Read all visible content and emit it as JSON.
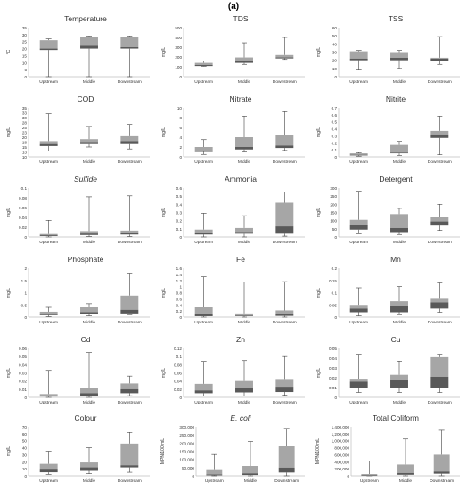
{
  "figure_label": "(a)",
  "colors": {
    "upper": "#a6a6a6",
    "lower": "#595959",
    "axis": "#bfbfbf",
    "whisker": "#404040"
  },
  "chart_data": [
    {
      "type": "box",
      "title": "Temperature",
      "title_italic": false,
      "ylabel": "°C",
      "ylim": [
        0,
        35
      ],
      "ticks": [
        "0",
        "5",
        "10",
        "15",
        "20",
        "25",
        "30",
        "35"
      ],
      "categories": [
        "Upstream",
        "Middle",
        "Downstream"
      ],
      "boxes": [
        {
          "min": 0,
          "q1": 19,
          "median": 20,
          "q3": 26,
          "max": 27
        },
        {
          "min": 0,
          "q1": 20,
          "median": 22,
          "q3": 28,
          "max": 29
        },
        {
          "min": 0,
          "q1": 20,
          "median": 21,
          "q3": 28,
          "max": 29
        }
      ]
    },
    {
      "type": "box",
      "title": "TDS",
      "title_italic": false,
      "ylabel": "mg/L",
      "ylim": [
        0,
        500
      ],
      "ticks": [
        "0",
        "100",
        "200",
        "300",
        "400",
        "500"
      ],
      "categories": [
        "Upstream",
        "Middle",
        "Downstream"
      ],
      "boxes": [
        {
          "min": 105,
          "q1": 108,
          "median": 118,
          "q3": 140,
          "max": 160
        },
        {
          "min": 125,
          "q1": 140,
          "median": 155,
          "q3": 195,
          "max": 345
        },
        {
          "min": 175,
          "q1": 185,
          "median": 195,
          "q3": 220,
          "max": 400
        }
      ]
    },
    {
      "type": "box",
      "title": "TSS",
      "title_italic": false,
      "ylabel": "mg/L",
      "ylim": [
        0,
        60
      ],
      "ticks": [
        "0",
        "10",
        "20",
        "30",
        "40",
        "50",
        "60"
      ],
      "categories": [
        "Upstream",
        "Middle",
        "Downstream"
      ],
      "boxes": [
        {
          "min": 8,
          "q1": 20,
          "median": 22,
          "q3": 31,
          "max": 32
        },
        {
          "min": 10,
          "q1": 20,
          "median": 23,
          "q3": 30,
          "max": 32
        },
        {
          "min": 15,
          "q1": 19,
          "median": 22,
          "q3": 23,
          "max": 49
        }
      ]
    },
    {
      "type": "box",
      "title": "COD",
      "title_italic": false,
      "ylabel": "mg/L",
      "ylim": [
        10,
        35
      ],
      "ticks": [
        "10",
        "13",
        "15",
        "18",
        "20",
        "23",
        "25",
        "28",
        "30",
        "33",
        "35"
      ],
      "categories": [
        "Upstream",
        "Middle",
        "Downstream"
      ],
      "boxes": [
        {
          "min": 13,
          "q1": 15.5,
          "median": 16.5,
          "q3": 18,
          "max": 32
        },
        {
          "min": 15,
          "q1": 16.5,
          "median": 17.5,
          "q3": 19,
          "max": 25.5
        },
        {
          "min": 14,
          "q1": 16.5,
          "median": 18,
          "q3": 20.5,
          "max": 26.5
        }
      ]
    },
    {
      "type": "box",
      "title": "Nitrate",
      "title_italic": false,
      "ylabel": "mg/L",
      "ylim": [
        0,
        10
      ],
      "ticks": [
        "0",
        "2",
        "4",
        "6",
        "8",
        "10"
      ],
      "categories": [
        "Upstream",
        "Middle",
        "Downstream"
      ],
      "boxes": [
        {
          "min": 0.5,
          "q1": 1.0,
          "median": 1.3,
          "q3": 2.0,
          "max": 3.5
        },
        {
          "min": 1.0,
          "q1": 1.5,
          "median": 2.0,
          "q3": 4.0,
          "max": 8.3
        },
        {
          "min": 1.3,
          "q1": 1.8,
          "median": 2.3,
          "q3": 4.5,
          "max": 9.2
        }
      ]
    },
    {
      "type": "box",
      "title": "Nitrite",
      "title_italic": false,
      "ylabel": "mg/L",
      "ylim": [
        0,
        0.7
      ],
      "ticks": [
        "0",
        "0.1",
        "0.2",
        "0.3",
        "0.4",
        "0.5",
        "0.6",
        "0.7"
      ],
      "categories": [
        "Upstream",
        "Middle",
        "Downstream"
      ],
      "boxes": [
        {
          "min": 0.01,
          "q1": 0.02,
          "median": 0.03,
          "q3": 0.05,
          "max": 0.06
        },
        {
          "min": 0.02,
          "q1": 0.05,
          "median": 0.06,
          "q3": 0.17,
          "max": 0.22
        },
        {
          "min": 0.03,
          "q1": 0.27,
          "median": 0.32,
          "q3": 0.37,
          "max": 0.58
        }
      ]
    },
    {
      "type": "box",
      "title": "Sulfide",
      "title_italic": true,
      "ylabel": "mg/L",
      "ylim": [
        0,
        0.1
      ],
      "ticks": [
        "0",
        "0.02",
        "0.04",
        "0.06",
        "0.08",
        "0.1"
      ],
      "categories": [
        "Upstream",
        "Middle",
        "Downstream"
      ],
      "boxes": [
        {
          "min": 0,
          "q1": 0.002,
          "median": 0.004,
          "q3": 0.006,
          "max": 0.034
        },
        {
          "min": 0.001,
          "q1": 0.004,
          "median": 0.007,
          "q3": 0.012,
          "max": 0.082
        },
        {
          "min": 0.001,
          "q1": 0.005,
          "median": 0.008,
          "q3": 0.013,
          "max": 0.084
        }
      ]
    },
    {
      "type": "box",
      "title": "Ammonia",
      "title_italic": false,
      "ylabel": "mg/L",
      "ylim": [
        0,
        0.6
      ],
      "ticks": [
        "0",
        "0.1",
        "0.2",
        "0.3",
        "0.4",
        "0.5",
        "0.6"
      ],
      "categories": [
        "Upstream",
        "Middle",
        "Downstream"
      ],
      "boxes": [
        {
          "min": 0,
          "q1": 0.03,
          "median": 0.05,
          "q3": 0.09,
          "max": 0.29
        },
        {
          "min": 0,
          "q1": 0.04,
          "median": 0.06,
          "q3": 0.11,
          "max": 0.26
        },
        {
          "min": 0.01,
          "q1": 0.04,
          "median": 0.13,
          "q3": 0.42,
          "max": 0.55
        }
      ]
    },
    {
      "type": "box",
      "title": "Detergent",
      "title_italic": false,
      "ylabel": "mg/L",
      "ylim": [
        0,
        300
      ],
      "ticks": [
        "0",
        "50",
        "100",
        "150",
        "200",
        "250",
        "300"
      ],
      "categories": [
        "Upstream",
        "Middle",
        "Downstream"
      ],
      "boxes": [
        {
          "min": 20,
          "q1": 45,
          "median": 75,
          "q3": 105,
          "max": 280
        },
        {
          "min": 15,
          "q1": 30,
          "median": 55,
          "q3": 140,
          "max": 175
        },
        {
          "min": 40,
          "q1": 70,
          "median": 95,
          "q3": 120,
          "max": 200
        }
      ]
    },
    {
      "type": "box",
      "title": "Phosphate",
      "title_italic": false,
      "ylabel": "mg/L",
      "ylim": [
        0,
        2
      ],
      "ticks": [
        "0",
        "0.5",
        "1",
        "1.5",
        "2"
      ],
      "categories": [
        "Upstream",
        "Middle",
        "Downstream"
      ],
      "boxes": [
        {
          "min": 0.02,
          "q1": 0.08,
          "median": 0.13,
          "q3": 0.22,
          "max": 0.4
        },
        {
          "min": 0.05,
          "q1": 0.12,
          "median": 0.2,
          "q3": 0.4,
          "max": 0.55
        },
        {
          "min": 0.1,
          "q1": 0.15,
          "median": 0.3,
          "q3": 0.88,
          "max": 1.8
        }
      ]
    },
    {
      "type": "box",
      "title": "Fe",
      "title_italic": false,
      "ylabel": "mg/L",
      "ylim": [
        0,
        1.6
      ],
      "ticks": [
        "0",
        "0.2",
        "0.4",
        "0.6",
        "0.8",
        "1",
        "1.2",
        "1.4",
        "1.6"
      ],
      "categories": [
        "Upstream",
        "Middle",
        "Downstream"
      ],
      "boxes": [
        {
          "min": 0,
          "q1": 0.03,
          "median": 0.09,
          "q3": 0.32,
          "max": 1.32
        },
        {
          "min": 0,
          "q1": 0.03,
          "median": 0.05,
          "q3": 0.12,
          "max": 1.15
        },
        {
          "min": 0,
          "q1": 0.04,
          "median": 0.1,
          "q3": 0.22,
          "max": 1.16
        }
      ]
    },
    {
      "type": "box",
      "title": "Mn",
      "title_italic": false,
      "ylabel": "mg/L",
      "ylim": [
        0,
        0.2
      ],
      "ticks": [
        "0",
        "0.05",
        "0.1",
        "0.15",
        "0.2"
      ],
      "categories": [
        "Upstream",
        "Middle",
        "Downstream"
      ],
      "boxes": [
        {
          "min": 0.005,
          "q1": 0.02,
          "median": 0.035,
          "q3": 0.05,
          "max": 0.12
        },
        {
          "min": 0.01,
          "q1": 0.02,
          "median": 0.045,
          "q3": 0.065,
          "max": 0.125
        },
        {
          "min": 0.02,
          "q1": 0.035,
          "median": 0.06,
          "q3": 0.075,
          "max": 0.14
        }
      ]
    },
    {
      "type": "box",
      "title": "Cd",
      "title_italic": false,
      "ylabel": "mg/L",
      "ylim": [
        0,
        0.06
      ],
      "ticks": [
        "0",
        "0.01",
        "0.02",
        "0.03",
        "0.04",
        "0.05",
        "0.06"
      ],
      "categories": [
        "Upstream",
        "Middle",
        "Downstream"
      ],
      "boxes": [
        {
          "min": 0,
          "q1": 0.001,
          "median": 0.002,
          "q3": 0.004,
          "max": 0.033
        },
        {
          "min": 0,
          "q1": 0.002,
          "median": 0.005,
          "q3": 0.012,
          "max": 0.055
        },
        {
          "min": 0.002,
          "q1": 0.005,
          "median": 0.01,
          "q3": 0.017,
          "max": 0.026
        }
      ]
    },
    {
      "type": "box",
      "title": "Zn",
      "title_italic": false,
      "ylabel": "mg/L",
      "ylim": [
        0,
        0.12
      ],
      "ticks": [
        "0",
        "0.02",
        "0.04",
        "0.06",
        "0.08",
        "0.1",
        "0.12"
      ],
      "categories": [
        "Upstream",
        "Middle",
        "Downstream"
      ],
      "boxes": [
        {
          "min": 0.003,
          "q1": 0.01,
          "median": 0.017,
          "q3": 0.033,
          "max": 0.088
        },
        {
          "min": 0.003,
          "q1": 0.012,
          "median": 0.022,
          "q3": 0.04,
          "max": 0.09
        },
        {
          "min": 0.005,
          "q1": 0.013,
          "median": 0.026,
          "q3": 0.045,
          "max": 0.1
        }
      ]
    },
    {
      "type": "box",
      "title": "Cu",
      "title_italic": false,
      "ylabel": "mg/L",
      "ylim": [
        0,
        0.05
      ],
      "ticks": [
        "0",
        "0.01",
        "0.02",
        "0.03",
        "0.04",
        "0.05"
      ],
      "categories": [
        "Upstream",
        "Middle",
        "Downstream"
      ],
      "boxes": [
        {
          "min": 0.005,
          "q1": 0.01,
          "median": 0.016,
          "q3": 0.019,
          "max": 0.044
        },
        {
          "min": 0.005,
          "q1": 0.01,
          "median": 0.018,
          "q3": 0.023,
          "max": 0.037
        },
        {
          "min": 0.005,
          "q1": 0.01,
          "median": 0.021,
          "q3": 0.041,
          "max": 0.044
        }
      ]
    },
    {
      "type": "box",
      "title": "Colour",
      "title_italic": false,
      "ylabel": "mg/L",
      "ylim": [
        0,
        70
      ],
      "ticks": [
        "0",
        "10",
        "20",
        "30",
        "40",
        "50",
        "60",
        "70"
      ],
      "categories": [
        "Upstream",
        "Middle",
        "Downstream"
      ],
      "boxes": [
        {
          "min": 2,
          "q1": 5,
          "median": 10,
          "q3": 17,
          "max": 35
        },
        {
          "min": 3,
          "q1": 7,
          "median": 12,
          "q3": 19,
          "max": 40
        },
        {
          "min": 5,
          "q1": 12,
          "median": 15,
          "q3": 46,
          "max": 62
        }
      ]
    },
    {
      "type": "box",
      "title": "E. coli",
      "title_italic": true,
      "ylabel": "MPN/100 mL",
      "ylim": [
        0,
        300000
      ],
      "ticks": [
        "0",
        "50,000",
        "100,000",
        "150,000",
        "200,000",
        "250,000",
        "300,000"
      ],
      "categories": [
        "Upstream",
        "Middle",
        "Downstream"
      ],
      "boxes": [
        {
          "min": 0,
          "q1": 3000,
          "median": 8000,
          "q3": 40000,
          "max": 130000
        },
        {
          "min": 0,
          "q1": 5000,
          "median": 15000,
          "q3": 60000,
          "max": 210000
        },
        {
          "min": 0,
          "q1": 20000,
          "median": 50000,
          "q3": 180000,
          "max": 290000
        }
      ]
    },
    {
      "type": "box",
      "title": "Total Coliform",
      "title_italic": false,
      "ylabel": "MPN/100 mL",
      "ylim": [
        0,
        1400000
      ],
      "ticks": [
        "0",
        "200,000",
        "400,000",
        "600,000",
        "800,000",
        "1,000,000",
        "1,200,000",
        "1,400,000"
      ],
      "categories": [
        "Upstream",
        "Middle",
        "Downstream"
      ],
      "boxes": [
        {
          "min": 0,
          "q1": 5000,
          "median": 15000,
          "q3": 50000,
          "max": 420000
        },
        {
          "min": 0,
          "q1": 30000,
          "median": 80000,
          "q3": 320000,
          "max": 1050000
        },
        {
          "min": 0,
          "q1": 60000,
          "median": 120000,
          "q3": 600000,
          "max": 1300000
        }
      ]
    }
  ]
}
